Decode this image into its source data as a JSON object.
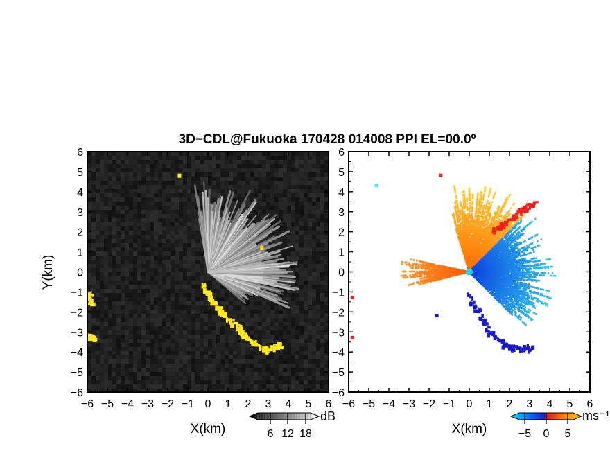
{
  "chart_data": [
    {
      "type": "heatmap",
      "panel": "backscatter",
      "title": "3D−CDL@Fukuoka 170428 014008 PPI EL=00.0º",
      "xlabel": "X(km)",
      "ylabel": "Y(km)",
      "xlim": [
        -6,
        6
      ],
      "ylim": [
        -6,
        6
      ],
      "xticks": [
        "−6",
        "−5",
        "−4",
        "−3",
        "−2",
        "−1",
        "0",
        "1",
        "2",
        "3",
        "4",
        "5",
        "6"
      ],
      "yticks": [
        "−6",
        "−5",
        "−4",
        "−3",
        "−2",
        "−1",
        "0",
        "1",
        "2",
        "3",
        "4",
        "5",
        "6"
      ],
      "colorbar": {
        "unit": "dB",
        "ticks": [
          "6",
          "12",
          "18"
        ],
        "colors": [
          "#000000",
          "#ffffff"
        ]
      },
      "highlight_color": "#ffe81a",
      "features": [
        {
          "name": "radial fan",
          "center": [
            0,
            0
          ],
          "azimuth_range_deg": [
            -25,
            100
          ],
          "range_km": [
            0,
            4.6
          ]
        },
        {
          "name": "western spoke",
          "center": [
            0,
            0
          ],
          "azimuth_range_deg": [
            -10,
            8
          ],
          "range_km": [
            0,
            4.3
          ]
        },
        {
          "name": "southwest spoke",
          "center": [
            0,
            0
          ],
          "azimuth_range_deg": [
            -40,
            -25
          ],
          "range_km": [
            0,
            2.8
          ]
        }
      ],
      "highlight_regions": [
        {
          "name": "coast band",
          "points": [
            [
              -0.3,
              -0.6
            ],
            [
              0.5,
              -1.8
            ],
            [
              1.5,
              -2.8
            ],
            [
              2.0,
              -3.4
            ],
            [
              2.9,
              -3.9
            ],
            [
              3.6,
              -3.7
            ]
          ]
        },
        {
          "name": "west patch 1",
          "points": [
            [
              -5.95,
              -1.1
            ],
            [
              -5.8,
              -1.6
            ]
          ]
        },
        {
          "name": "west patch 2",
          "points": [
            [
              -5.95,
              -3.2
            ],
            [
              -5.6,
              -3.4
            ]
          ]
        },
        {
          "name": "north dot",
          "points": [
            [
              -1.4,
              4.8
            ]
          ]
        },
        {
          "name": "ne dot",
          "points": [
            [
              2.7,
              1.2
            ]
          ]
        }
      ]
    },
    {
      "type": "heatmap",
      "panel": "radial_velocity",
      "xlabel": "X(km)",
      "xlim": [
        -6,
        6
      ],
      "ylim": [
        -6,
        6
      ],
      "xticks": [
        "−6",
        "−5",
        "−4",
        "−3",
        "−2",
        "−1",
        "0",
        "1",
        "2",
        "3",
        "4",
        "5",
        "6"
      ],
      "yticks": [
        "−6",
        "−5",
        "−4",
        "−3",
        "−2",
        "−1",
        "0",
        "1",
        "2",
        "3",
        "4",
        "5",
        "6"
      ],
      "colorbar": {
        "unit": "ms⁻¹",
        "ticks": [
          "−5",
          "0",
          "5"
        ],
        "colors": [
          "#00e5ff",
          "#0060ff",
          "#2020c0",
          "#e02020",
          "#ff8000",
          "#ffd000"
        ]
      },
      "sectors": [
        {
          "name": "receding (yellow-orange)",
          "center": [
            0,
            0
          ],
          "azimuth_range_deg": [
            45,
            108
          ],
          "range_km": [
            0,
            4.4
          ],
          "color_inner": "#ff6a00",
          "color_outer": "#ffd23a"
        },
        {
          "name": "approaching (blue-cyan)",
          "center": [
            0,
            0
          ],
          "azimuth_range_deg": [
            -45,
            45
          ],
          "range_km": [
            0,
            4.4
          ],
          "color_inner": "#0a40e0",
          "color_outer": "#33ccf0"
        },
        {
          "name": "western orange spoke",
          "center": [
            0,
            0
          ],
          "azimuth_range_deg": [
            168,
            195
          ],
          "range_km": [
            0,
            3.5
          ],
          "color_inner": "#ff5a00",
          "color_outer": "#ff9a30"
        }
      ],
      "edge_bands": [
        {
          "name": "red boundary north",
          "color": "#ee2020",
          "points": [
            [
              1.2,
              2.0
            ],
            [
              2.5,
              3.0
            ],
            [
              3.3,
              3.4
            ]
          ]
        },
        {
          "name": "blue boundary south",
          "color": "#1a1acc",
          "points": [
            [
              0.0,
              -1.2
            ],
            [
              1.0,
              -3.0
            ],
            [
              2.0,
              -3.8
            ],
            [
              3.1,
              -3.8
            ]
          ]
        }
      ],
      "scatter_dots": [
        {
          "x": -4.6,
          "y": 4.3,
          "color": "#40e0ff"
        },
        {
          "x": -1.4,
          "y": 4.8,
          "color": "#ee2020"
        },
        {
          "x": -1.6,
          "y": -2.2,
          "color": "#2020c0"
        },
        {
          "x": -5.8,
          "y": -3.3,
          "color": "#ee2020"
        },
        {
          "x": -5.8,
          "y": -1.3,
          "color": "#ee2020"
        }
      ]
    }
  ]
}
